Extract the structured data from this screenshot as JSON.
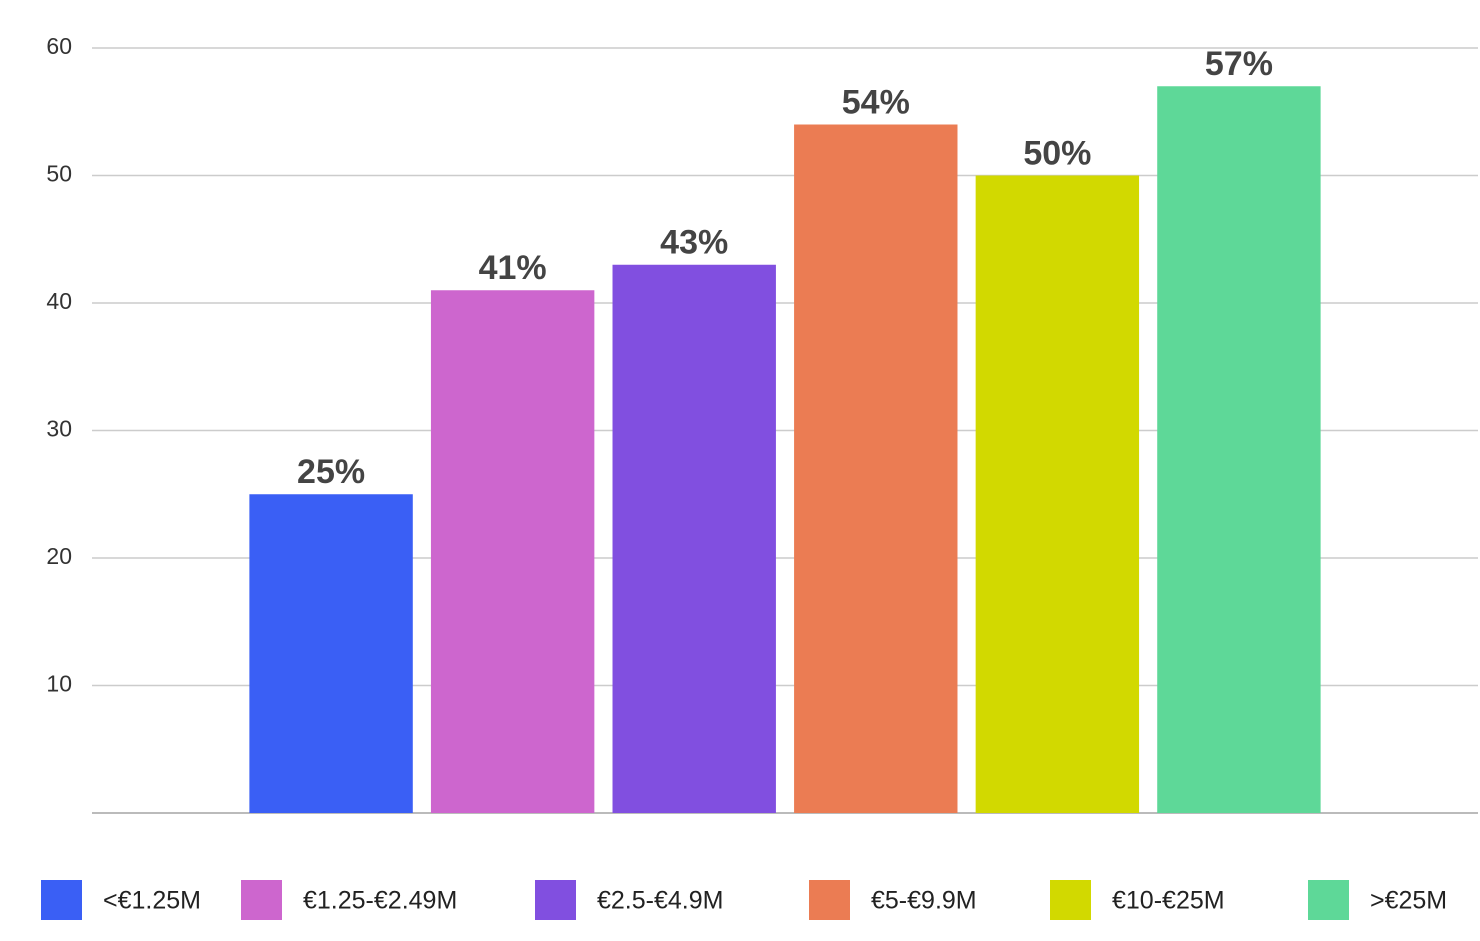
{
  "chart_data": {
    "type": "bar",
    "categories": [
      null
    ],
    "series": [
      {
        "name": "<€1.25M",
        "color": "#3a5ff5",
        "values": [
          25
        ],
        "value_labels": [
          "25%"
        ]
      },
      {
        "name": "€1.25-€2.49M",
        "color": "#cd66ce",
        "values": [
          41
        ],
        "value_labels": [
          "41%"
        ]
      },
      {
        "name": "€2.5-€4.9M",
        "color": "#814fe0",
        "values": [
          43
        ],
        "value_labels": [
          "43%"
        ]
      },
      {
        "name": "€5-€9.9M",
        "color": "#eb7c53",
        "values": [
          54
        ],
        "value_labels": [
          "54%"
        ]
      },
      {
        "name": "€10-€25M",
        "color": "#d2d900",
        "values": [
          50
        ],
        "value_labels": [
          "50%"
        ]
      },
      {
        "name": ">€25M",
        "color": "#5ed898",
        "values": [
          57
        ],
        "value_labels": [
          "57%"
        ]
      }
    ],
    "ylim": [
      0,
      60
    ],
    "yticks": [
      10,
      20,
      30,
      40,
      50,
      60
    ],
    "grid": true,
    "legend": "bottom"
  }
}
